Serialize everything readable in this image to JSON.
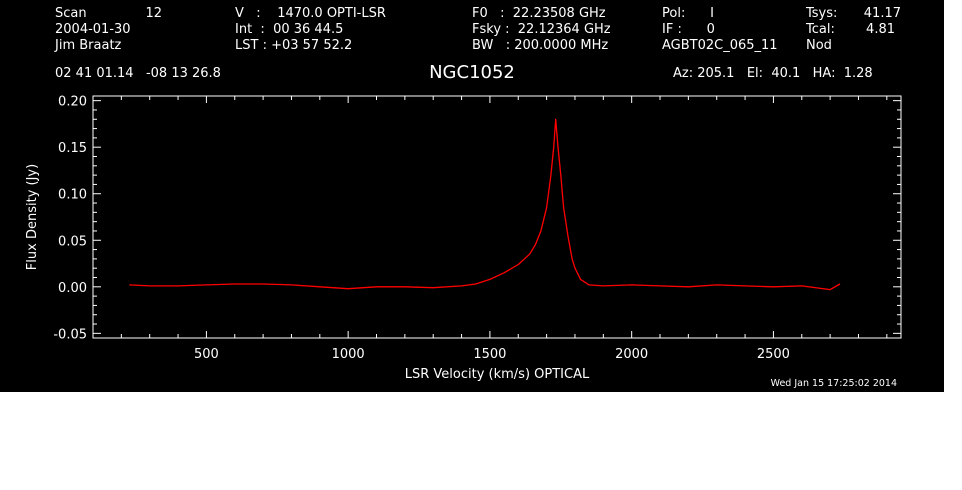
{
  "header": {
    "col1": [
      "Scan",
      "2004-01-30",
      "Jim Braatz"
    ],
    "scan_number": "12",
    "col2": [
      "V   :    1470.0 OPTI-LSR",
      "Int  :  00 36 44.5",
      "LST : +03 57 52.2"
    ],
    "col3": [
      "F0   :  22.23508 GHz",
      "Fsky :  22.12364 GHz",
      "BW   : 200.0000 MHz"
    ],
    "col4": [
      "Pol:      I",
      "IF :      0",
      "AGBT02C_065_11"
    ],
    "col5_labels": [
      "Tsys:",
      "Tcal:",
      "Nod"
    ],
    "col5_values": [
      "41.17",
      "4.81",
      ""
    ],
    "coords": "02 41 01.14   -08 13 26.8",
    "source": "NGC1052",
    "azelha": "Az: 205.1   El:  40.1   HA:  1.28",
    "timestamp": "Wed Jan 15 17:25:02 2014"
  },
  "colors": {
    "background": "#000000",
    "axes": "#ffffff",
    "trace": "#ff0000"
  },
  "chart_data": {
    "type": "line",
    "xlabel": "LSR Velocity (km/s) OPTICAL",
    "ylabel": "Flux Density (Jy)",
    "xlim": [
      100,
      2950
    ],
    "ylim": [
      -0.055,
      0.205
    ],
    "xticks": [
      500,
      1000,
      1500,
      2000,
      2500
    ],
    "yticks": [
      -0.05,
      0.0,
      0.05,
      0.1,
      0.15,
      0.2
    ],
    "ytick_labels": [
      "-0.05",
      "0.00",
      "0.05",
      "0.10",
      "0.15",
      "0.20"
    ],
    "series": [
      {
        "x": [
          228,
          300,
          400,
          500,
          600,
          700,
          800,
          900,
          1000,
          1100,
          1200,
          1300,
          1400,
          1450,
          1500,
          1550,
          1600,
          1640,
          1660,
          1680,
          1700,
          1715,
          1725,
          1732,
          1740,
          1750,
          1760,
          1775,
          1790,
          1800,
          1820,
          1850,
          1900,
          2000,
          2100,
          2200,
          2300,
          2400,
          2500,
          2600,
          2700,
          2735
        ],
        "y": [
          0.002,
          0.001,
          0.001,
          0.002,
          0.003,
          0.003,
          0.002,
          0.0,
          -0.002,
          0.0,
          0.0,
          -0.001,
          0.001,
          0.003,
          0.008,
          0.015,
          0.024,
          0.035,
          0.045,
          0.06,
          0.085,
          0.12,
          0.15,
          0.18,
          0.15,
          0.12,
          0.085,
          0.055,
          0.03,
          0.02,
          0.008,
          0.002,
          0.001,
          0.002,
          0.001,
          0.0,
          0.002,
          0.001,
          0.0,
          0.001,
          -0.003,
          0.003
        ]
      }
    ]
  }
}
